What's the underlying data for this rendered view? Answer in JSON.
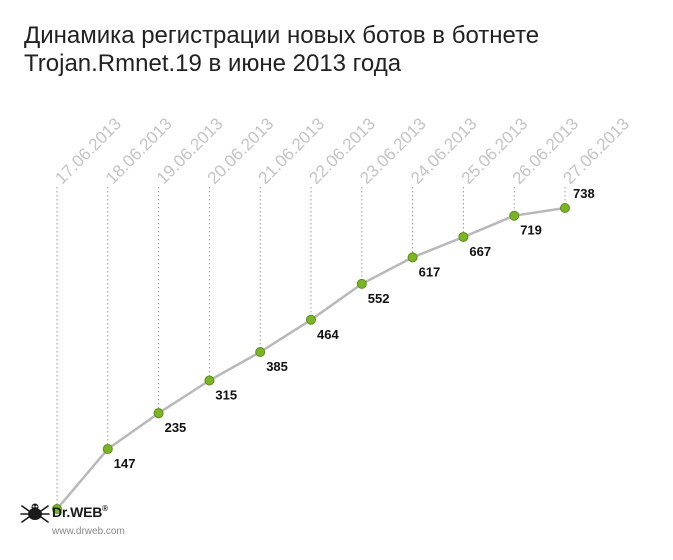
{
  "chart_data": {
    "type": "line",
    "title_lines": [
      "Динамика регистрации новых ботов в ботнете",
      "Trojan.Rmnet.19 в июне 2013 года"
    ],
    "categories": [
      "17.06.2013",
      "18.06.2013",
      "19.06.2013",
      "20.06.2013",
      "21.06.2013",
      "22.06.2013",
      "23.06.2013",
      "24.06.2013",
      "25.06.2013",
      "26.06.2013",
      "27.06.2013"
    ],
    "values": [
      0,
      147,
      235,
      315,
      385,
      464,
      552,
      617,
      667,
      719,
      738
    ],
    "data_labels": [
      "",
      "147",
      "235",
      "315",
      "385",
      "464",
      "552",
      "617",
      "667",
      "719",
      "738"
    ],
    "ylim": [
      0,
      738
    ],
    "colors": {
      "line": "#b8b8b8",
      "marker_fill": "#7bb526",
      "marker_stroke": "#5a8f16",
      "guide": "#9a9a9a",
      "tick_label": "#c4c4c4",
      "value_label": "#111111"
    }
  },
  "logo": {
    "brand": "Dr.WEB",
    "registered_mark": "®",
    "url": "www.drweb.com"
  }
}
